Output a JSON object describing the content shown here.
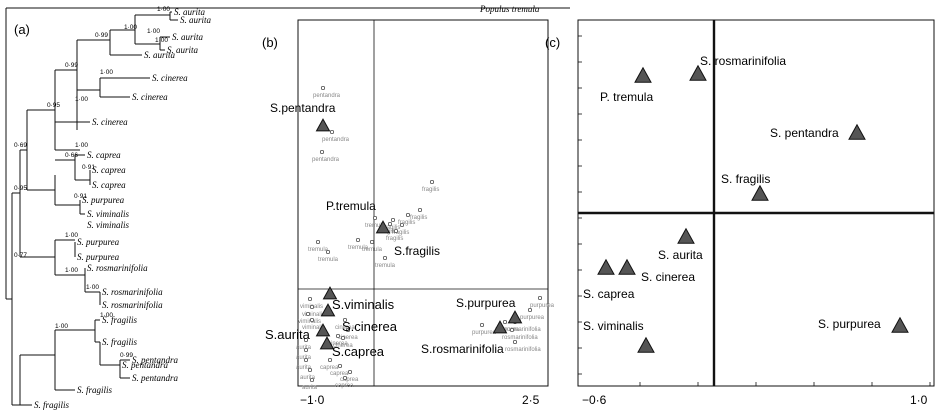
{
  "outgroup": "Populus tremula",
  "tree": {
    "panel_label": "(a)",
    "leaves": [
      "S. aurita",
      "S. aurita",
      "S. aurita",
      "S. aurita",
      "S. aurita",
      "S. cinerea",
      "S. cinerea",
      "S. cinerea",
      "S. caprea",
      "S. caprea",
      "S. caprea",
      "S. purpurea",
      "S. viminalis",
      "S. viminalis",
      "S. purpurea",
      "S. purpurea",
      "S. rosmarinifolia",
      "S. rosmarinifolia",
      "S. rosmarinifolia",
      "S. fragilis",
      "S. fragilis",
      "S. pentandra",
      "S. pentandra",
      "S. pentandra",
      "S. fragilis",
      "S. fragilis"
    ],
    "support_values": [
      "1·00",
      "1·00",
      "1·00",
      "1·00",
      "0·99",
      "1·00",
      "0·99",
      "1·00",
      "0·95",
      "1·00",
      "0·91",
      "0·69",
      "0·66",
      "0·91",
      "0·95",
      "1·00",
      "0·77",
      "1·00",
      "1·00",
      "1·00",
      "1·00",
      "0·99"
    ]
  },
  "panel_b": {
    "panel_label": "(b)",
    "x_ticks": [
      "−1·0",
      "2·5"
    ],
    "group_labels": [
      "S.pentandra",
      "P.tremula",
      "S.fragilis",
      "S.viminalis",
      "S.aurita",
      "S.cinerea",
      "S.caprea",
      "S.purpurea",
      "S.rosmarinifolia"
    ],
    "point_labels": {
      "pentandra": [
        "pentandra",
        "pentandra",
        "pentandra"
      ],
      "tremula": [
        "tremula",
        "tremula",
        "tremula",
        "tremula",
        "tremula",
        "tremula"
      ],
      "fragilis": [
        "fragilis",
        "fragilis",
        "fragilis",
        "fragilis",
        "fragilis",
        "fragilis",
        "fragilis"
      ],
      "viminalis": [
        "viminalis",
        "viminalis",
        "viminalis",
        "viminalis"
      ],
      "cinerea": [
        "cinerea",
        "cinerea",
        "cinerea",
        "cinerea"
      ],
      "caprea": [
        "caprea",
        "caprea",
        "caprea",
        "caprea"
      ],
      "aurita": [
        "aurita",
        "aurita",
        "aurita",
        "aurita",
        "aurita"
      ],
      "purpurea": [
        "purpurea",
        "purpurea",
        "purpurea",
        "purpurea"
      ],
      "rosmarinifolia": [
        "rosmarinifolia",
        "rosmarinifolia",
        "rosmarinifolia"
      ]
    }
  },
  "panel_c": {
    "panel_label": "(c)",
    "x_ticks": [
      "−0·6",
      "1·0"
    ],
    "labels": [
      "S. rosmarinifolia",
      "P. tremula",
      "S. pentandra",
      "S. fragilis",
      "S. aurita",
      "S. cinerea",
      "S. caprea",
      "S. viminalis",
      "S. purpurea"
    ]
  }
}
